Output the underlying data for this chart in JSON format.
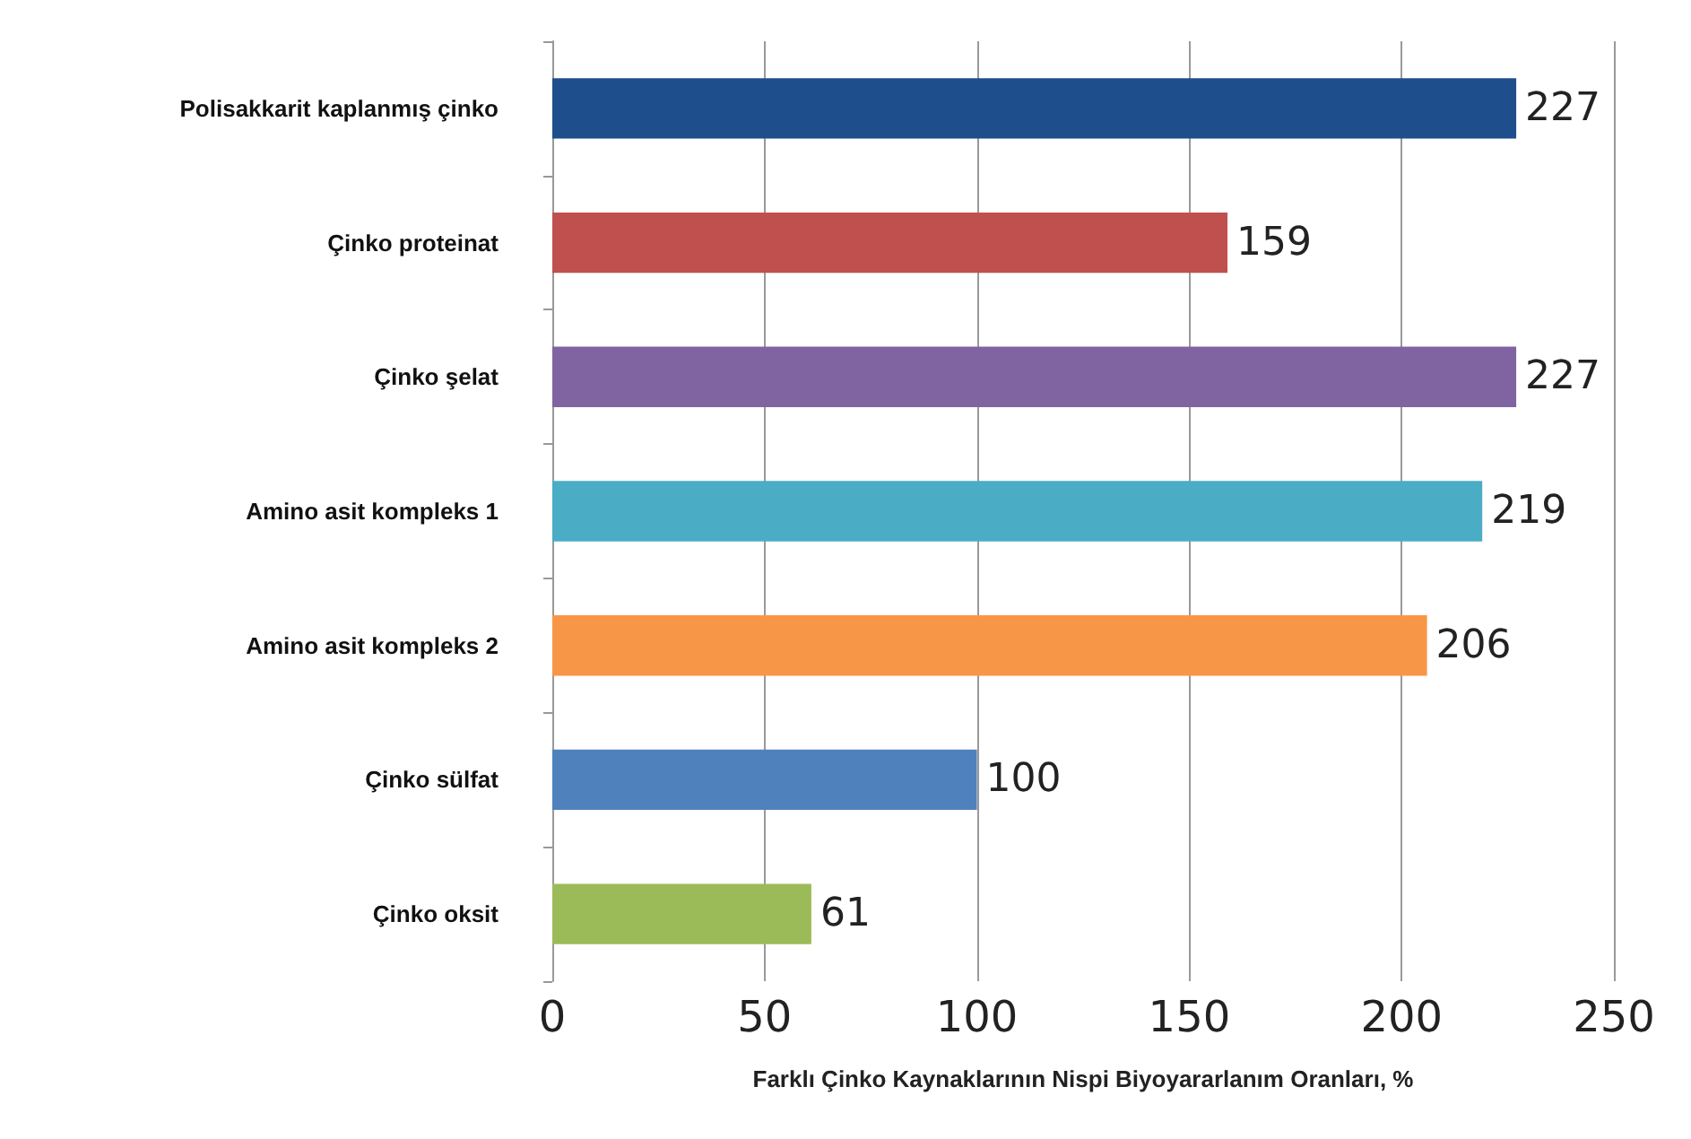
{
  "chart_data": {
    "type": "bar",
    "orientation": "horizontal",
    "xlabel": "Farklı Çinko Kaynaklarının Nispi Biyoyararlanım Oranları, %",
    "categories": [
      "Polisakkarit kaplanmış çinko",
      "Çinko proteinat",
      "Çinko şelat",
      "Amino asit kompleks 1",
      "Amino asit kompleks 2",
      "Çinko sülfat",
      "Çinko oksit"
    ],
    "values": [
      227,
      159,
      227,
      219,
      206,
      100,
      61
    ],
    "colors": [
      "#1f4e8c",
      "#c0504d",
      "#8064a2",
      "#4bacc6",
      "#f79646",
      "#4f81bd",
      "#9bbb59"
    ],
    "xlim": [
      0,
      250
    ],
    "xticks": [
      0,
      50,
      100,
      150,
      200,
      250
    ],
    "grid": "x",
    "data_labels": true
  }
}
